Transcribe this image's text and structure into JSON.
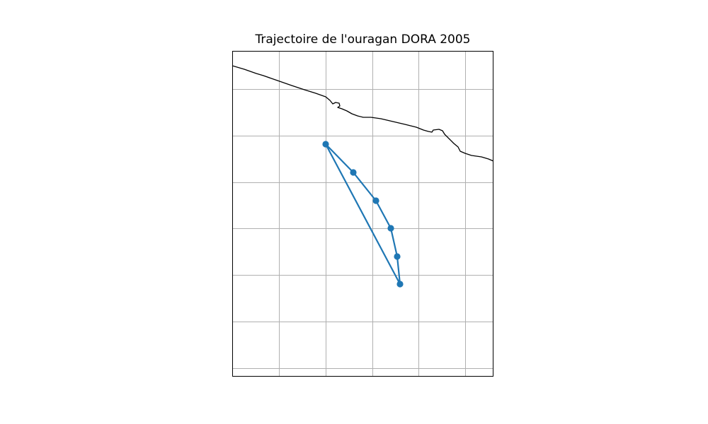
{
  "title": "Trajectoire de l'ouragan DORA 2005",
  "colors": {
    "track": "#1f77b4",
    "coastline": "#000000",
    "gridlines": "#b0b0b0",
    "frame": "#000000",
    "background": "#ffffff"
  },
  "map": {
    "gridlines": true,
    "projection": "PlateCarree",
    "track_style": "line with circle markers",
    "track_point_count": 6
  }
}
